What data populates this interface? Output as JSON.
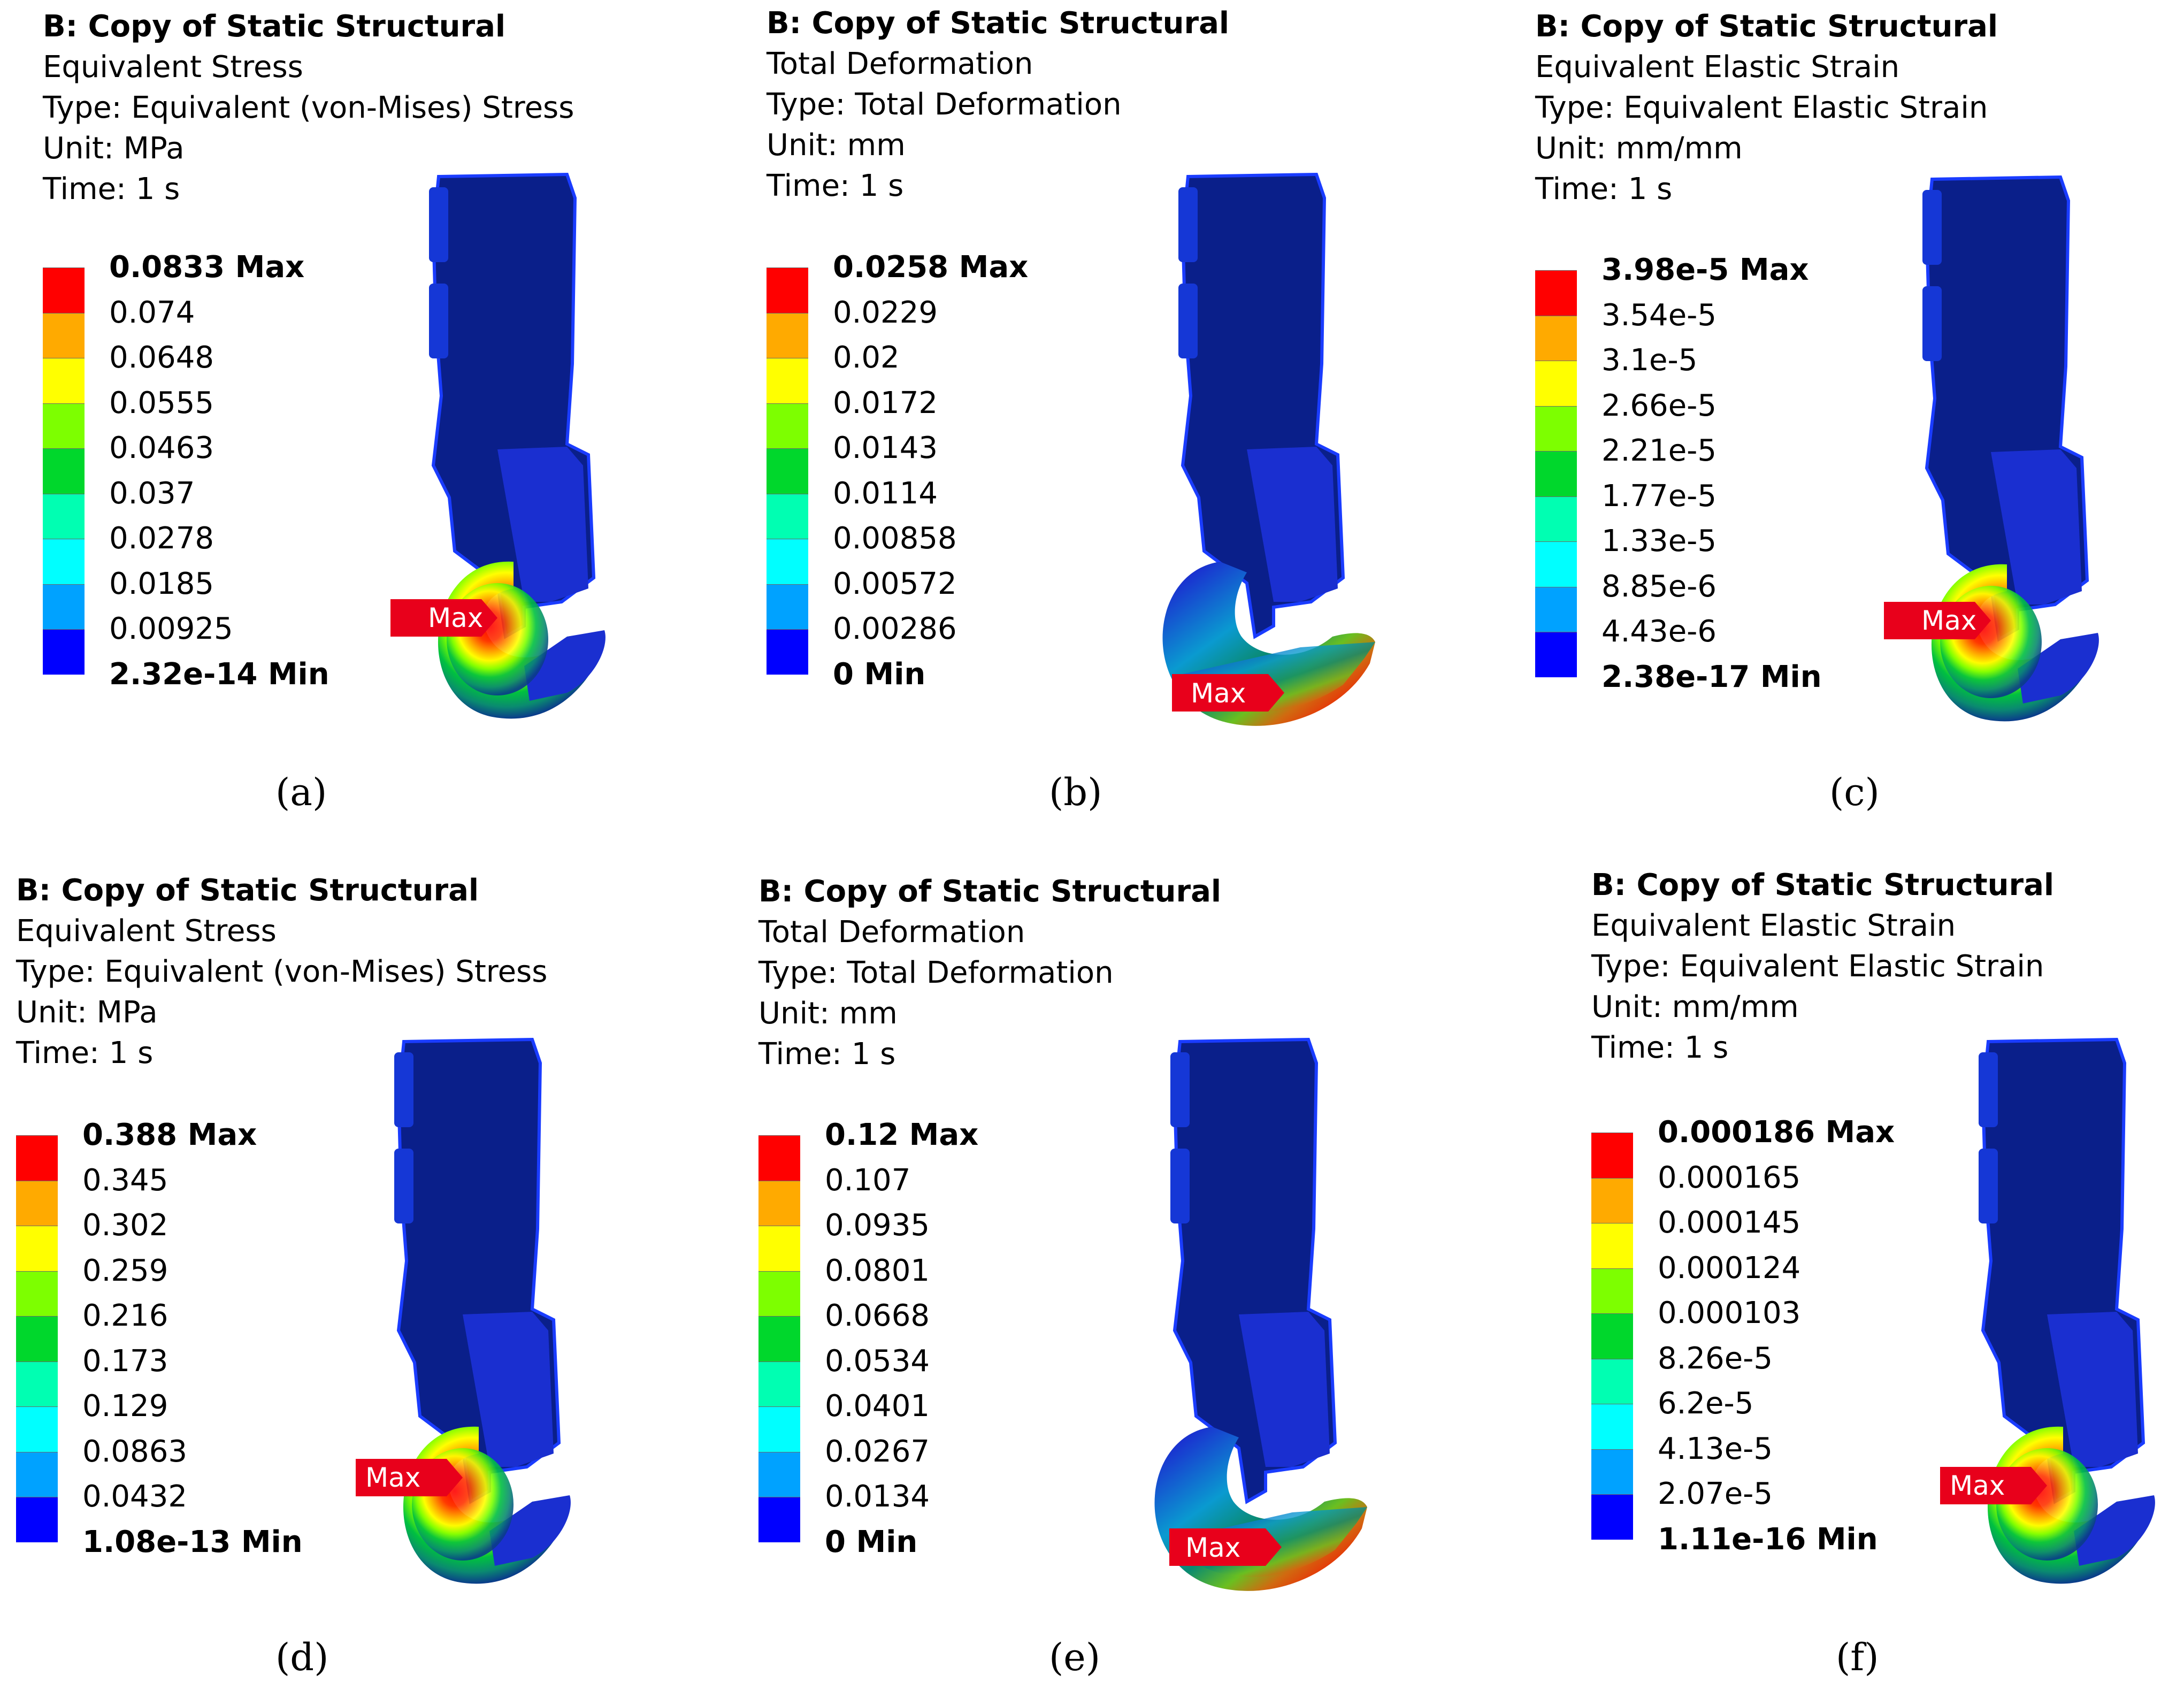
{
  "colors": {
    "contour": [
      "#0000ff",
      "#00a2ff",
      "#00ffff",
      "#00ffb2",
      "#00d72c",
      "#7dff00",
      "#ffff00",
      "#ffaa00",
      "#ff0000"
    ],
    "part_body": "#0a1f8a",
    "part_edge": "#1a3cff",
    "max_tag": "#e8001b"
  },
  "panels": [
    {
      "system": "B: Copy of Static Structural",
      "result": "Equivalent Stress",
      "type": "Type: Equivalent (von-Mises) Stress",
      "unit": "Unit: MPa",
      "time": "Time: 1 s",
      "legend": [
        "0.0833 Max",
        "0.074",
        "0.0648",
        "0.0555",
        "0.0463",
        "0.037",
        "0.0278",
        "0.0185",
        "0.00925",
        "2.32e-14 Min"
      ],
      "max_tag": "Max",
      "hotspot": "inner-bore",
      "caption": "(a)"
    },
    {
      "system": "B: Copy of Static Structural",
      "result": "Total Deformation",
      "type": "Type: Total Deformation",
      "unit": "Unit: mm",
      "time": "Time: 1 s",
      "legend": [
        "0.0258 Max",
        "0.0229",
        "0.02",
        "0.0172",
        "0.0143",
        "0.0114",
        "0.00858",
        "0.00572",
        "0.00286",
        "0 Min"
      ],
      "max_tag": "Max",
      "hotspot": "hook-tip",
      "caption": "(b)"
    },
    {
      "system": "B: Copy of Static Structural",
      "result": "Equivalent Elastic Strain",
      "type": "Type: Equivalent Elastic Strain",
      "unit": "Unit: mm/mm",
      "time": "Time: 1 s",
      "legend": [
        "3.98e-5 Max",
        "3.54e-5",
        "3.1e-5",
        "2.66e-5",
        "2.21e-5",
        "1.77e-5",
        "1.33e-5",
        "8.85e-6",
        "4.43e-6",
        "2.38e-17 Min"
      ],
      "max_tag": "Max",
      "hotspot": "inner-bore",
      "caption": "(c)"
    },
    {
      "system": "B: Copy of Static Structural",
      "result": "Equivalent Stress",
      "type": "Type: Equivalent (von-Mises) Stress",
      "unit": "Unit: MPa",
      "time": "Time: 1 s",
      "legend": [
        "0.388 Max",
        "0.345",
        "0.302",
        "0.259",
        "0.216",
        "0.173",
        "0.129",
        "0.0863",
        "0.0432",
        "1.08e-13 Min"
      ],
      "max_tag": "Max",
      "hotspot": "inner-bore",
      "caption": "(d)"
    },
    {
      "system": "B: Copy of Static Structural",
      "result": "Total Deformation",
      "type": "Type: Total Deformation",
      "unit": "Unit: mm",
      "time": "Time: 1 s",
      "legend": [
        "0.12 Max",
        "0.107",
        "0.0935",
        "0.0801",
        "0.0668",
        "0.0534",
        "0.0401",
        "0.0267",
        "0.0134",
        "0 Min"
      ],
      "max_tag": "Max",
      "hotspot": "hook-tip",
      "caption": "(e)"
    },
    {
      "system": "B: Copy of Static Structural",
      "result": "Equivalent Elastic Strain",
      "type": "Type: Equivalent Elastic Strain",
      "unit": "Unit: mm/mm",
      "time": "Time: 1 s",
      "legend": [
        "0.000186 Max",
        "0.000165",
        "0.000145",
        "0.000124",
        "0.000103",
        "8.26e-5",
        "6.2e-5",
        "4.13e-5",
        "2.07e-5",
        "1.11e-16 Min"
      ],
      "max_tag": "Max",
      "hotspot": "inner-bore",
      "caption": "(f)"
    }
  ]
}
